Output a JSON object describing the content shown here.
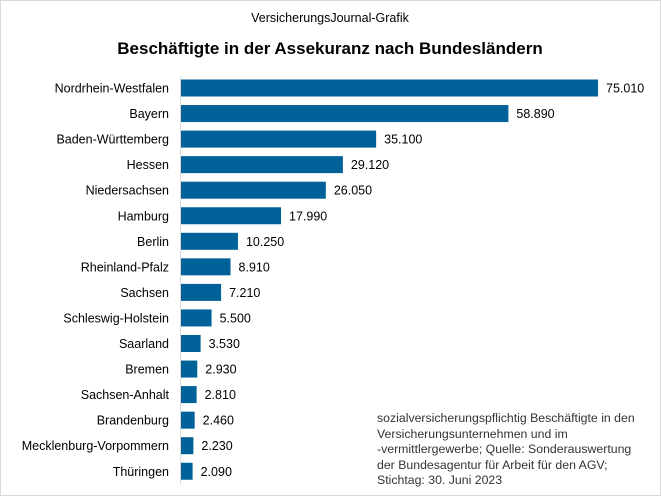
{
  "chart_data": {
    "type": "bar",
    "orientation": "horizontal",
    "subtitle": "VersicherungsJournal-Grafik",
    "title": "Beschäftigte in der Assekuranz nach Bundesländern",
    "categories": [
      "Nordrhein-Westfalen",
      "Bayern",
      "Baden-Württemberg",
      "Hessen",
      "Niedersachsen",
      "Hamburg",
      "Berlin",
      "Rheinland-Pfalz",
      "Sachsen",
      "Schleswig-Holstein",
      "Saarland",
      "Bremen",
      "Sachsen-Anhalt",
      "Brandenburg",
      "Mecklenburg-Vorpommern",
      "Thüringen"
    ],
    "values": [
      75010,
      58890,
      35100,
      29120,
      26050,
      17990,
      10250,
      8910,
      7210,
      5500,
      3530,
      2930,
      2810,
      2460,
      2230,
      2090
    ],
    "value_labels": [
      "75.010",
      "58.890",
      "35.100",
      "29.120",
      "26.050",
      "17.990",
      "10.250",
      "8.910",
      "7.210",
      "5.500",
      "3.530",
      "2.930",
      "2.810",
      "2.460",
      "2.230",
      "2.090"
    ],
    "xlim": [
      0,
      75010
    ],
    "grid": false,
    "legend": "none",
    "bar_color": "#006299",
    "note": "sozialversicherungspflichtig  Beschäftigte in den\nVersicherungsunternehmen  und im\n-vermittlergewerbe;  Quelle: Sonderauswertung\nder Bundesagentur  für Arbeit für den AGV;\nStichtag: 30. Juni 2023"
  }
}
